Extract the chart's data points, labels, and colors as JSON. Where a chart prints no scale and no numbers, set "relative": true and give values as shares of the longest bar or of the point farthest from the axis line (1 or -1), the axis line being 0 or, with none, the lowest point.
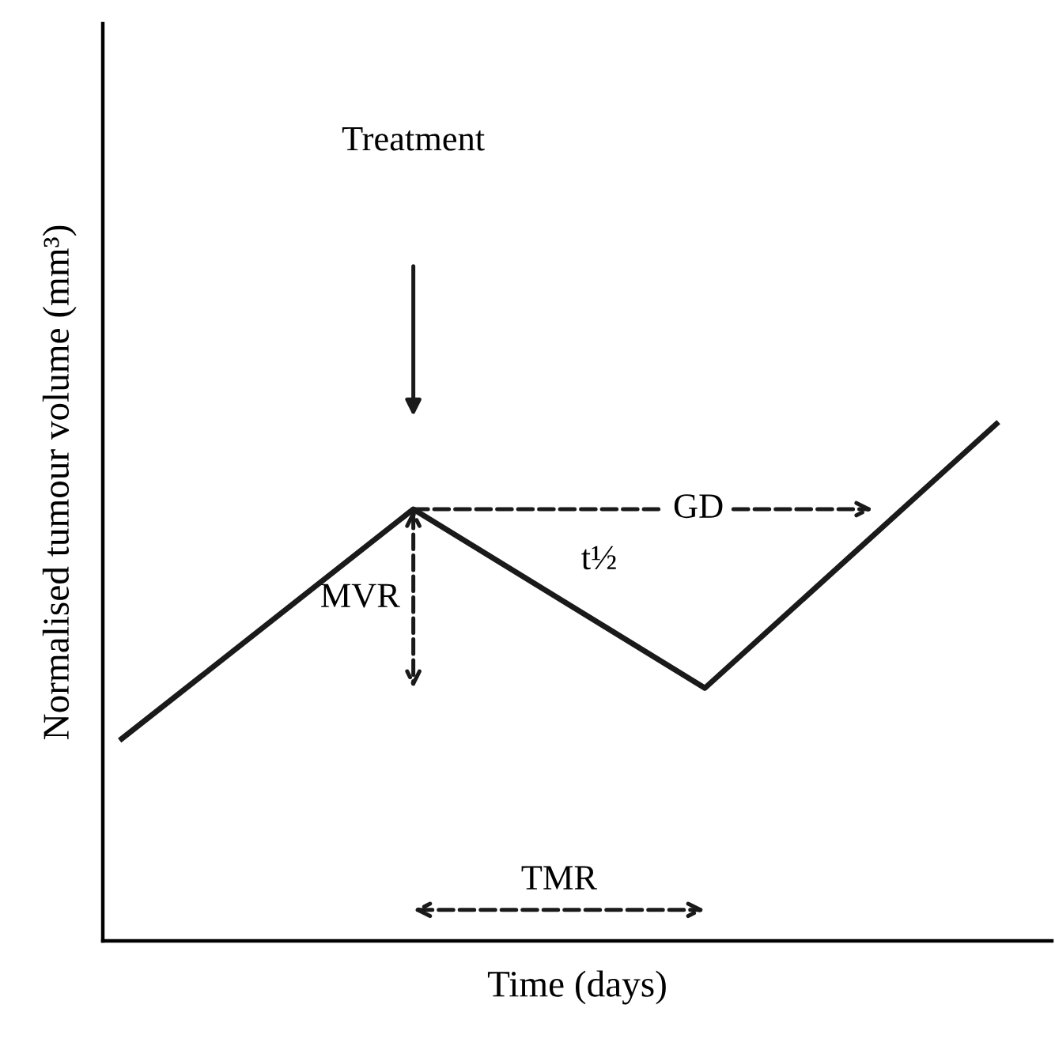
{
  "chart_data": {
    "type": "line",
    "relative": true,
    "xlabel": "Time (days)",
    "ylabel": "Normalised tumour volume (mm³)",
    "categories": [
      null,
      null,
      null,
      null
    ],
    "series": [
      {
        "color": "#1a1a1a",
        "values": [
          0.391,
          0.835,
          0.489,
          1.0
        ]
      }
    ],
    "annotations": [
      "Treatment",
      "GD",
      "MVR",
      "t½",
      "TMR"
    ]
  }
}
